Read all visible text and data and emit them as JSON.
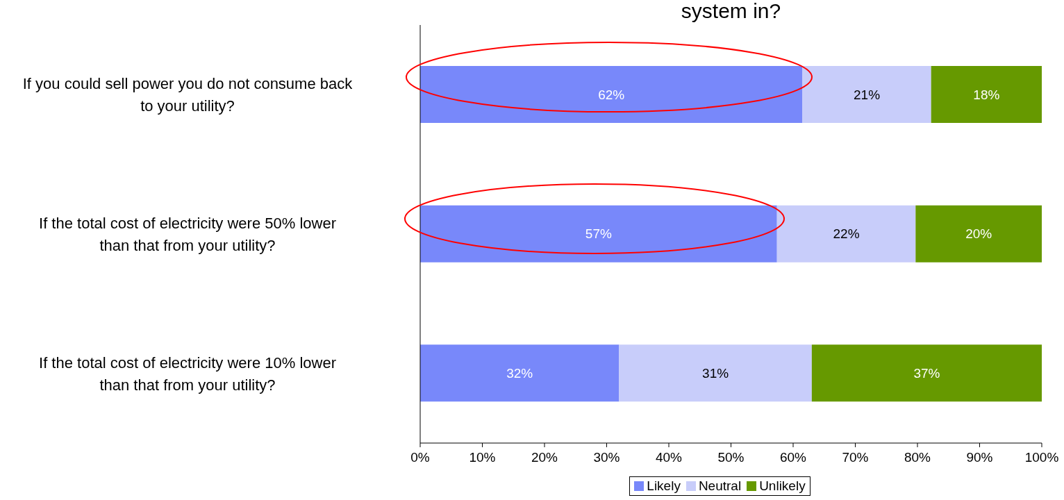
{
  "chart_data": {
    "type": "bar",
    "orientation": "horizontal",
    "stacked": true,
    "title": "system in?",
    "categories": [
      "If you could sell power you do not consume back to your utility?",
      "If the total cost of electricity were 50% lower than that from your utility?",
      "If the total cost of electricity were 10% lower than that from your utility?"
    ],
    "series": [
      {
        "name": "Likely",
        "color": "#7888fa",
        "values": [
          61.5,
          57.4,
          32.0
        ],
        "value_labels": [
          "62%",
          "57%",
          "32%"
        ]
      },
      {
        "name": "Neutral",
        "color": "#c8cdfa",
        "values": [
          20.7,
          22.3,
          31.0
        ],
        "value_labels": [
          "21%",
          "22%",
          "31%"
        ]
      },
      {
        "name": "Unlikely",
        "color": "#669900",
        "values": [
          17.9,
          20.3,
          37.0
        ],
        "value_labels": [
          "18%",
          "20%",
          "37%"
        ]
      }
    ],
    "xlim": [
      0,
      100
    ],
    "xticks": [
      {
        "value": 0,
        "label": "0%"
      },
      {
        "value": 10,
        "label": "10%"
      },
      {
        "value": 20,
        "label": "20%"
      },
      {
        "value": 30,
        "label": "30%"
      },
      {
        "value": 40,
        "label": "40%"
      },
      {
        "value": 50,
        "label": "50%"
      },
      {
        "value": 60,
        "label": "60%"
      },
      {
        "value": 70,
        "label": "70%"
      },
      {
        "value": 80,
        "label": "80%"
      },
      {
        "value": 90,
        "label": "90%"
      },
      {
        "value": 100,
        "label": "100%"
      }
    ],
    "grid": false,
    "legend": "bottom"
  }
}
